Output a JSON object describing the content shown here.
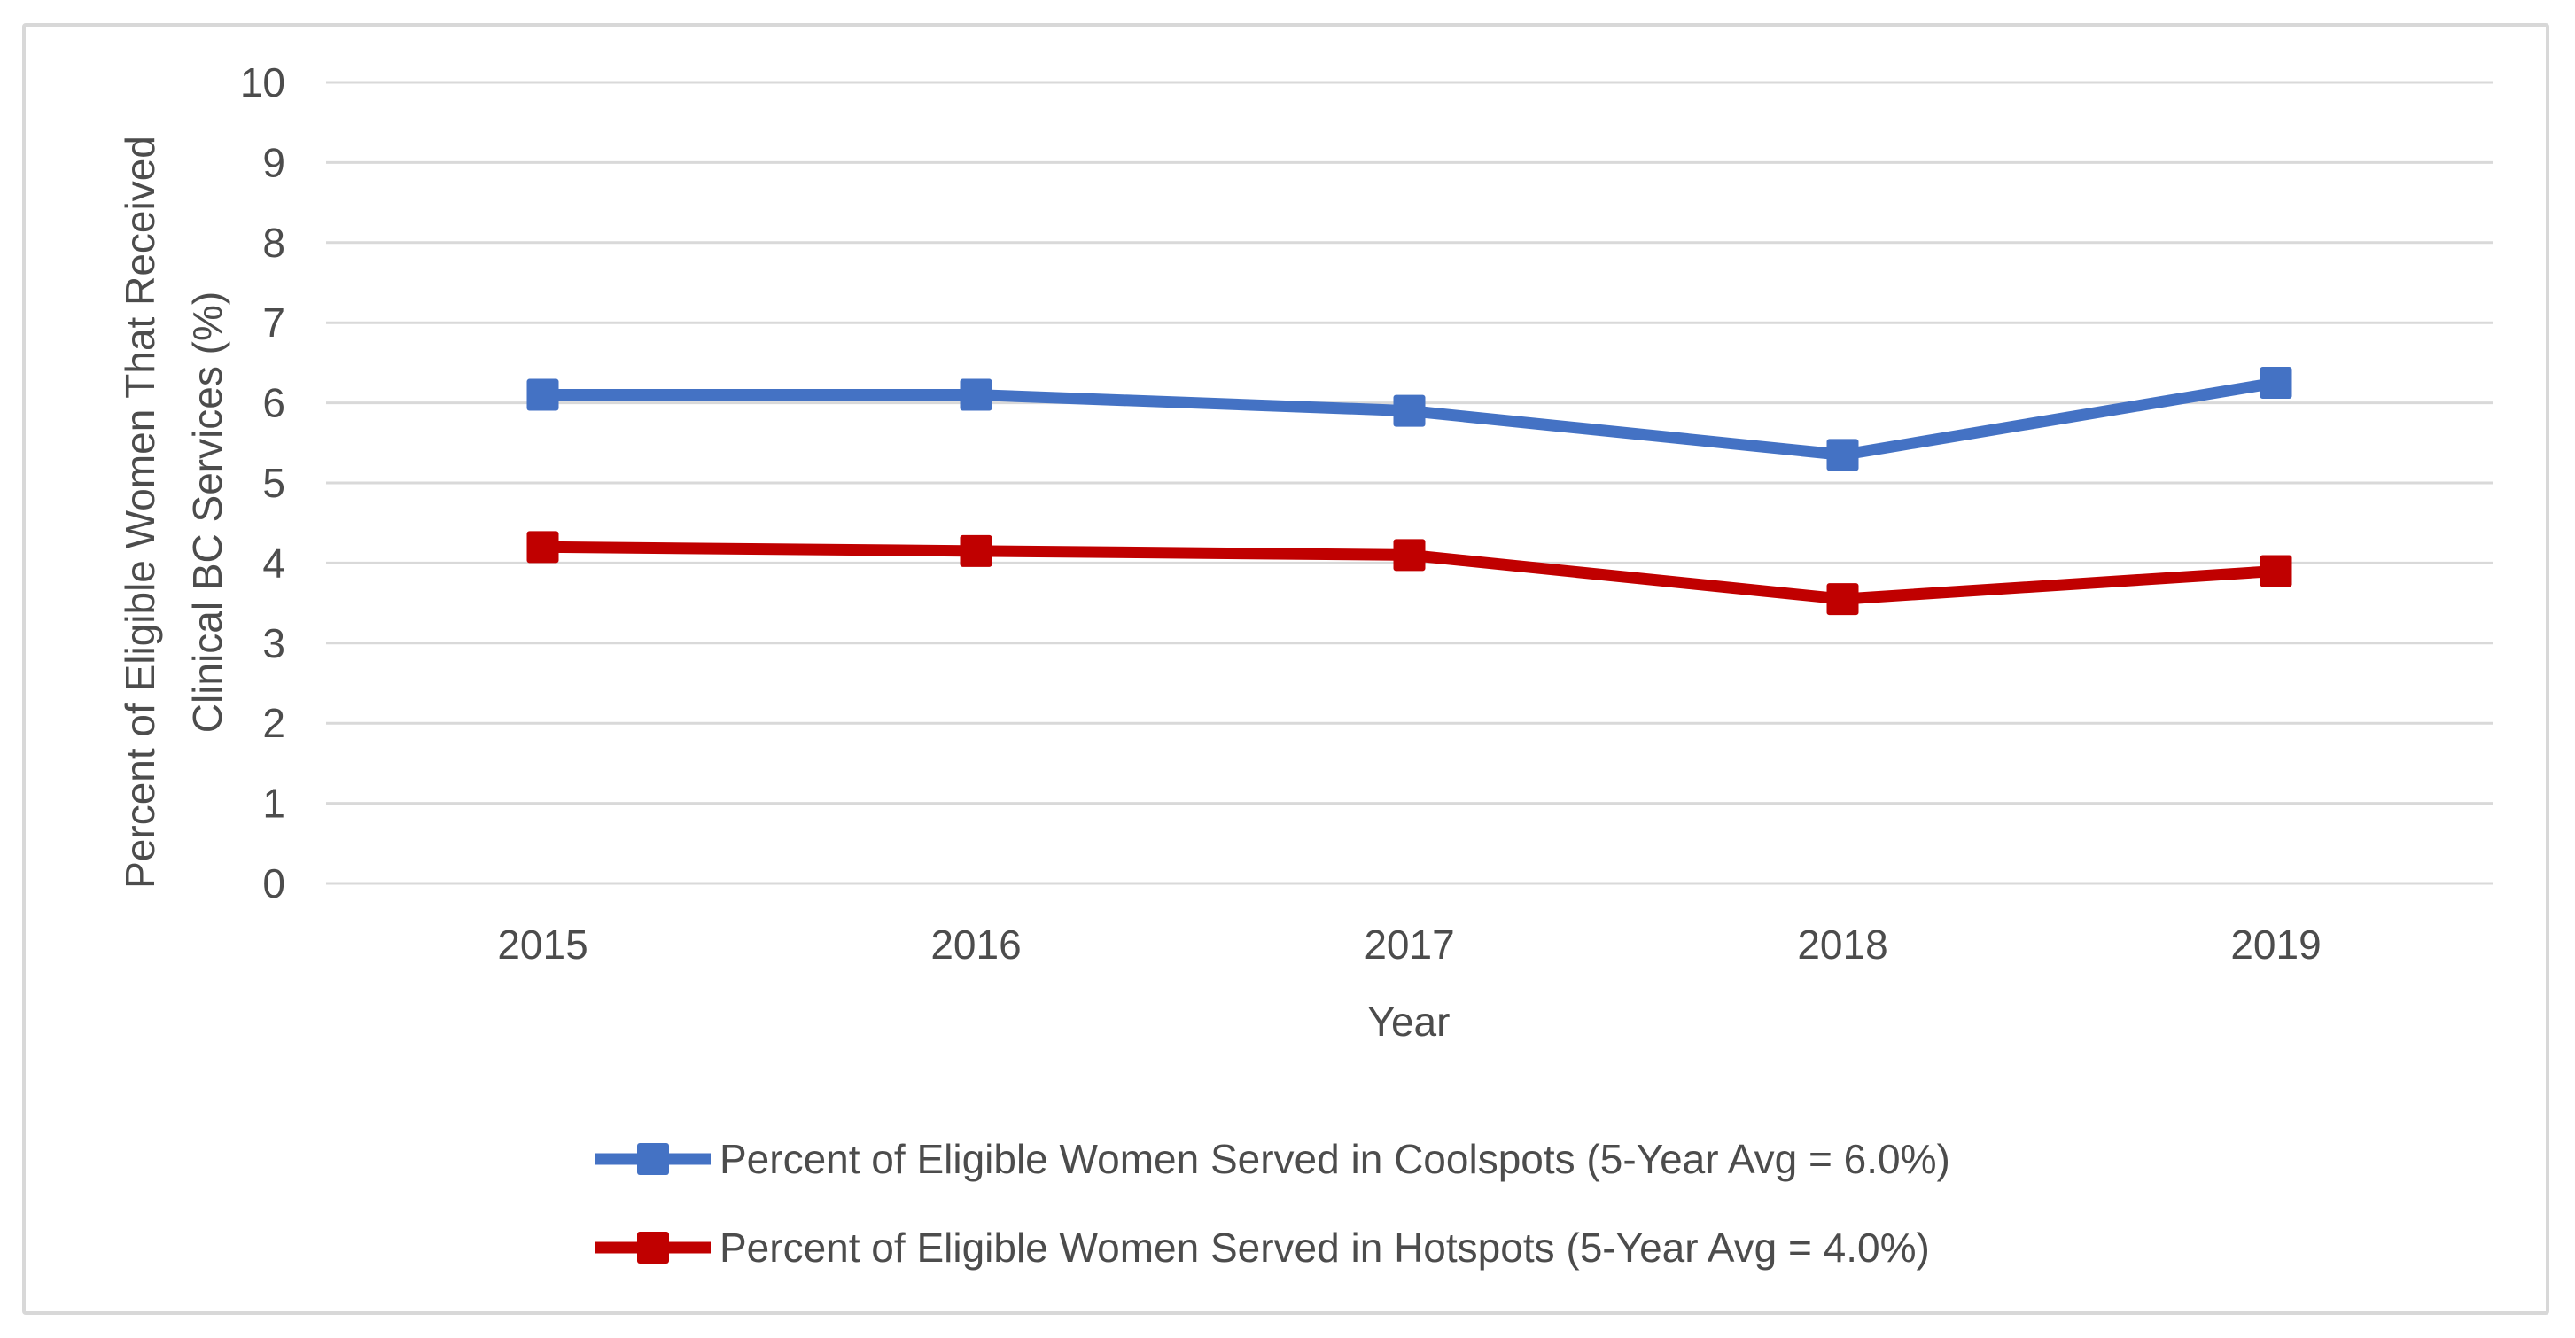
{
  "chart_data": {
    "type": "line",
    "title": "",
    "xlabel": "Year",
    "ylabel": "Percent of Eligible Women That Received Clinical BC Services (%)",
    "ylabel_lines": [
      "Percent of Eligible Women That Received",
      "Clinical BC Services (%)"
    ],
    "categories": [
      "2015",
      "2016",
      "2017",
      "2018",
      "2019"
    ],
    "series": [
      {
        "name": "Coolspots",
        "legend_label": "Percent of Eligible Women Served in Coolspots (5-Year Avg = 6.0%)",
        "five_year_avg": "6.0%",
        "color": "#4472C4",
        "values": [
          6.1,
          6.1,
          5.9,
          5.35,
          6.25
        ]
      },
      {
        "name": "Hotspots",
        "legend_label": "Percent of Eligible Women Served in Hotspots (5-Year Avg = 4.0%)",
        "five_year_avg": "4.0%",
        "color": "#C00000",
        "values": [
          4.2,
          4.15,
          4.1,
          3.55,
          3.9
        ]
      }
    ],
    "ylim": [
      0,
      10
    ],
    "yticks": [
      0,
      1,
      2,
      3,
      4,
      5,
      6,
      7,
      8,
      9,
      10
    ],
    "grid": "horizontal",
    "legend_position": "bottom",
    "marker": "square"
  },
  "colors": {
    "gridline": "#D9D9D9",
    "text": "#4C4C4C",
    "frame_border": "#D8D8D8",
    "background": "#FFFFFF"
  }
}
